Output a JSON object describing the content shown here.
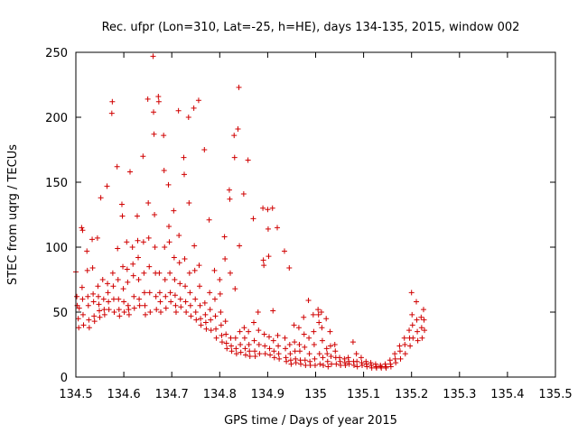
{
  "chart_data": {
    "type": "scatter",
    "title": "Rec. ufpr (Lon=310, Lat=-25, h=HE), days 134-135, 2015, window 002",
    "xlabel": "GPS time / Days of year 2015",
    "ylabel": "STEC from uqrg / TECUs",
    "xlim": [
      134.5,
      135.5
    ],
    "ylim": [
      0,
      250
    ],
    "xticks": [
      "134.5",
      "134.6",
      "134.7",
      "134.8",
      "134.9",
      "135",
      "135.1",
      "135.2",
      "135.3",
      "135.4",
      "135.5"
    ],
    "yticks": [
      "0",
      "50",
      "100",
      "150",
      "200",
      "250"
    ],
    "grid": false,
    "marker": "+",
    "color": "#d00000",
    "points": [
      [
        134.5,
        81
      ],
      [
        134.502,
        62
      ],
      [
        134.503,
        55
      ],
      [
        134.505,
        45
      ],
      [
        134.506,
        38
      ],
      [
        134.507,
        53
      ],
      [
        134.512,
        115
      ],
      [
        134.513,
        69
      ],
      [
        134.514,
        60
      ],
      [
        134.515,
        48
      ],
      [
        134.516,
        40
      ],
      [
        134.514,
        113
      ],
      [
        134.523,
        97
      ],
      [
        134.524,
        82
      ],
      [
        134.525,
        62
      ],
      [
        134.526,
        55
      ],
      [
        134.527,
        44
      ],
      [
        134.528,
        38
      ],
      [
        134.534,
        106
      ],
      [
        134.535,
        84
      ],
      [
        134.536,
        64
      ],
      [
        134.537,
        58
      ],
      [
        134.538,
        47
      ],
      [
        134.539,
        43
      ],
      [
        134.545,
        107
      ],
      [
        134.546,
        70
      ],
      [
        134.547,
        62
      ],
      [
        134.548,
        56
      ],
      [
        134.549,
        51
      ],
      [
        134.55,
        46
      ],
      [
        134.552,
        138
      ],
      [
        134.556,
        75
      ],
      [
        134.558,
        60
      ],
      [
        134.559,
        52
      ],
      [
        134.56,
        48
      ],
      [
        134.565,
        147
      ],
      [
        134.566,
        72
      ],
      [
        134.567,
        65
      ],
      [
        134.568,
        58
      ],
      [
        134.569,
        52
      ],
      [
        134.575,
        203
      ],
      [
        134.576,
        212
      ],
      [
        134.577,
        80
      ],
      [
        134.578,
        70
      ],
      [
        134.579,
        60
      ],
      [
        134.58,
        50
      ],
      [
        134.586,
        162
      ],
      [
        134.587,
        99
      ],
      [
        134.588,
        75
      ],
      [
        134.589,
        60
      ],
      [
        134.59,
        52
      ],
      [
        134.591,
        47
      ],
      [
        134.596,
        133
      ],
      [
        134.597,
        124
      ],
      [
        134.598,
        85
      ],
      [
        134.599,
        68
      ],
      [
        134.6,
        58
      ],
      [
        134.601,
        50
      ],
      [
        134.606,
        104
      ],
      [
        134.607,
        83
      ],
      [
        134.608,
        73
      ],
      [
        134.609,
        55
      ],
      [
        134.61,
        52
      ],
      [
        134.611,
        48
      ],
      [
        134.613,
        158
      ],
      [
        134.618,
        100
      ],
      [
        134.619,
        87
      ],
      [
        134.62,
        78
      ],
      [
        134.621,
        62
      ],
      [
        134.622,
        53
      ],
      [
        134.628,
        124
      ],
      [
        134.629,
        105
      ],
      [
        134.63,
        92
      ],
      [
        134.631,
        75
      ],
      [
        134.632,
        60
      ],
      [
        134.633,
        55
      ],
      [
        134.64,
        170
      ],
      [
        134.641,
        104
      ],
      [
        134.642,
        80
      ],
      [
        134.643,
        65
      ],
      [
        134.644,
        55
      ],
      [
        134.645,
        48
      ],
      [
        134.65,
        214
      ],
      [
        134.651,
        134
      ],
      [
        134.652,
        107
      ],
      [
        134.653,
        85
      ],
      [
        134.654,
        65
      ],
      [
        134.655,
        50
      ],
      [
        134.661,
        247
      ],
      [
        134.662,
        204
      ],
      [
        134.663,
        187
      ],
      [
        134.664,
        125
      ],
      [
        134.665,
        100
      ],
      [
        134.666,
        80
      ],
      [
        134.667,
        62
      ],
      [
        134.668,
        52
      ],
      [
        134.672,
        216
      ],
      [
        134.673,
        212
      ],
      [
        134.674,
        80
      ],
      [
        134.675,
        65
      ],
      [
        134.676,
        58
      ],
      [
        134.677,
        50
      ],
      [
        134.683,
        186
      ],
      [
        134.684,
        159
      ],
      [
        134.685,
        100
      ],
      [
        134.686,
        75
      ],
      [
        134.687,
        62
      ],
      [
        134.688,
        53
      ],
      [
        134.693,
        148
      ],
      [
        134.694,
        116
      ],
      [
        134.695,
        104
      ],
      [
        134.696,
        80
      ],
      [
        134.697,
        65
      ],
      [
        134.698,
        58
      ],
      [
        134.704,
        128
      ],
      [
        134.705,
        92
      ],
      [
        134.706,
        75
      ],
      [
        134.707,
        63
      ],
      [
        134.708,
        55
      ],
      [
        134.709,
        50
      ],
      [
        134.714,
        205
      ],
      [
        134.715,
        109
      ],
      [
        134.716,
        88
      ],
      [
        134.717,
        72
      ],
      [
        134.718,
        60
      ],
      [
        134.719,
        54
      ],
      [
        134.725,
        169
      ],
      [
        134.726,
        156
      ],
      [
        134.727,
        91
      ],
      [
        134.728,
        70
      ],
      [
        134.729,
        58
      ],
      [
        134.73,
        50
      ],
      [
        134.735,
        200
      ],
      [
        134.736,
        134
      ],
      [
        134.737,
        80
      ],
      [
        134.738,
        65
      ],
      [
        134.739,
        55
      ],
      [
        134.74,
        47
      ],
      [
        134.746,
        207
      ],
      [
        134.747,
        101
      ],
      [
        134.748,
        82
      ],
      [
        134.749,
        60
      ],
      [
        134.75,
        50
      ],
      [
        134.751,
        44
      ],
      [
        134.756,
        213
      ],
      [
        134.757,
        86
      ],
      [
        134.758,
        70
      ],
      [
        134.759,
        55
      ],
      [
        134.76,
        45
      ],
      [
        134.761,
        40
      ],
      [
        134.768,
        175
      ],
      [
        134.769,
        57
      ],
      [
        134.77,
        48
      ],
      [
        134.771,
        42
      ],
      [
        134.772,
        37
      ],
      [
        134.778,
        121
      ],
      [
        134.779,
        65
      ],
      [
        134.78,
        52
      ],
      [
        134.781,
        44
      ],
      [
        134.782,
        36
      ],
      [
        134.789,
        82
      ],
      [
        134.79,
        60
      ],
      [
        134.791,
        47
      ],
      [
        134.792,
        37
      ],
      [
        134.793,
        30
      ],
      [
        134.8,
        75
      ],
      [
        134.801,
        64
      ],
      [
        134.802,
        50
      ],
      [
        134.803,
        40
      ],
      [
        134.804,
        32
      ],
      [
        134.805,
        27
      ],
      [
        134.81,
        108
      ],
      [
        134.811,
        91
      ],
      [
        134.812,
        43
      ],
      [
        134.813,
        33
      ],
      [
        134.814,
        26
      ],
      [
        134.815,
        22
      ],
      [
        134.82,
        144
      ],
      [
        134.821,
        137
      ],
      [
        134.822,
        80
      ],
      [
        134.823,
        30
      ],
      [
        134.824,
        24
      ],
      [
        134.825,
        20
      ],
      [
        134.83,
        186
      ],
      [
        134.831,
        169
      ],
      [
        134.832,
        68
      ],
      [
        134.833,
        30
      ],
      [
        134.834,
        22
      ],
      [
        134.835,
        18
      ],
      [
        134.838,
        191
      ],
      [
        134.84,
        223
      ],
      [
        134.841,
        101
      ],
      [
        134.842,
        35
      ],
      [
        134.843,
        25
      ],
      [
        134.844,
        19
      ],
      [
        134.85,
        141
      ],
      [
        134.851,
        38
      ],
      [
        134.852,
        30
      ],
      [
        134.853,
        22
      ],
      [
        134.854,
        17
      ],
      [
        134.859,
        167
      ],
      [
        134.86,
        35
      ],
      [
        134.861,
        25
      ],
      [
        134.862,
        20
      ],
      [
        134.863,
        16
      ],
      [
        134.87,
        122
      ],
      [
        134.871,
        42
      ],
      [
        134.872,
        28
      ],
      [
        134.873,
        20
      ],
      [
        134.874,
        16
      ],
      [
        134.88,
        50
      ],
      [
        134.881,
        36
      ],
      [
        134.882,
        25
      ],
      [
        134.883,
        18
      ],
      [
        134.89,
        130
      ],
      [
        134.891,
        90
      ],
      [
        134.892,
        86
      ],
      [
        134.893,
        33
      ],
      [
        134.894,
        24
      ],
      [
        134.895,
        18
      ],
      [
        134.9,
        129
      ],
      [
        134.901,
        114
      ],
      [
        134.902,
        93
      ],
      [
        134.903,
        31
      ],
      [
        134.904,
        22
      ],
      [
        134.905,
        17
      ],
      [
        134.91,
        130
      ],
      [
        134.911,
        51
      ],
      [
        134.912,
        28
      ],
      [
        134.913,
        20
      ],
      [
        134.914,
        15
      ],
      [
        134.92,
        115
      ],
      [
        134.921,
        32
      ],
      [
        134.922,
        24
      ],
      [
        134.923,
        18
      ],
      [
        134.924,
        14
      ],
      [
        134.935,
        97
      ],
      [
        134.936,
        30
      ],
      [
        134.937,
        22
      ],
      [
        134.938,
        15
      ],
      [
        134.939,
        12
      ],
      [
        134.945,
        84
      ],
      [
        134.946,
        25
      ],
      [
        134.947,
        18
      ],
      [
        134.948,
        13
      ],
      [
        134.949,
        10
      ],
      [
        134.955,
        40
      ],
      [
        134.956,
        27
      ],
      [
        134.957,
        20
      ],
      [
        134.958,
        14
      ],
      [
        134.959,
        11
      ],
      [
        134.965,
        38
      ],
      [
        134.966,
        25
      ],
      [
        134.967,
        20
      ],
      [
        134.968,
        13
      ],
      [
        134.969,
        10
      ],
      [
        134.975,
        46
      ],
      [
        134.976,
        33
      ],
      [
        134.977,
        23
      ],
      [
        134.978,
        13
      ],
      [
        134.979,
        9
      ],
      [
        134.985,
        59
      ],
      [
        134.986,
        30
      ],
      [
        134.987,
        18
      ],
      [
        134.988,
        12
      ],
      [
        134.989,
        9
      ],
      [
        134.995,
        48
      ],
      [
        134.996,
        35
      ],
      [
        134.997,
        25
      ],
      [
        134.998,
        14
      ],
      [
        134.999,
        9
      ],
      [
        135.005,
        52
      ],
      [
        135.006,
        48
      ],
      [
        135.007,
        42
      ],
      [
        135.008,
        18
      ],
      [
        135.009,
        10
      ],
      [
        135.012,
        50
      ],
      [
        135.013,
        38
      ],
      [
        135.014,
        28
      ],
      [
        135.015,
        15
      ],
      [
        135.016,
        9
      ],
      [
        135.022,
        45
      ],
      [
        135.023,
        22
      ],
      [
        135.024,
        18
      ],
      [
        135.025,
        12
      ],
      [
        135.026,
        8
      ],
      [
        135.03,
        35
      ],
      [
        135.031,
        24
      ],
      [
        135.032,
        16
      ],
      [
        135.033,
        10
      ],
      [
        135.04,
        25
      ],
      [
        135.041,
        20
      ],
      [
        135.042,
        15
      ],
      [
        135.043,
        10
      ],
      [
        135.05,
        15
      ],
      [
        135.051,
        12
      ],
      [
        135.052,
        9
      ],
      [
        135.06,
        14
      ],
      [
        135.061,
        11
      ],
      [
        135.062,
        9
      ],
      [
        135.068,
        15
      ],
      [
        135.069,
        12
      ],
      [
        135.07,
        10
      ],
      [
        135.078,
        27
      ],
      [
        135.079,
        12
      ],
      [
        135.08,
        9
      ],
      [
        135.085,
        18
      ],
      [
        135.086,
        12
      ],
      [
        135.087,
        8
      ],
      [
        135.095,
        15
      ],
      [
        135.096,
        11
      ],
      [
        135.097,
        9
      ],
      [
        135.105,
        12
      ],
      [
        135.106,
        10
      ],
      [
        135.107,
        8
      ],
      [
        135.115,
        11
      ],
      [
        135.116,
        9
      ],
      [
        135.117,
        7
      ],
      [
        135.125,
        10
      ],
      [
        135.126,
        8
      ],
      [
        135.127,
        7
      ],
      [
        135.135,
        9
      ],
      [
        135.136,
        8
      ],
      [
        135.137,
        7
      ],
      [
        135.145,
        10
      ],
      [
        135.146,
        8
      ],
      [
        135.147,
        7
      ],
      [
        135.155,
        13
      ],
      [
        135.156,
        10
      ],
      [
        135.157,
        8
      ],
      [
        135.165,
        18
      ],
      [
        135.166,
        14
      ],
      [
        135.167,
        11
      ],
      [
        135.175,
        24
      ],
      [
        135.176,
        20
      ],
      [
        135.177,
        14
      ],
      [
        135.185,
        30
      ],
      [
        135.186,
        25
      ],
      [
        135.187,
        18
      ],
      [
        135.195,
        36
      ],
      [
        135.196,
        30
      ],
      [
        135.197,
        24
      ],
      [
        135.2,
        65
      ],
      [
        135.201,
        48
      ],
      [
        135.202,
        40
      ],
      [
        135.203,
        30
      ],
      [
        135.21,
        58
      ],
      [
        135.211,
        44
      ],
      [
        135.212,
        35
      ],
      [
        135.213,
        28
      ],
      [
        135.22,
        46
      ],
      [
        135.221,
        38
      ],
      [
        135.222,
        30
      ],
      [
        135.225,
        52
      ],
      [
        135.226,
        44
      ],
      [
        135.227,
        36
      ]
    ]
  }
}
